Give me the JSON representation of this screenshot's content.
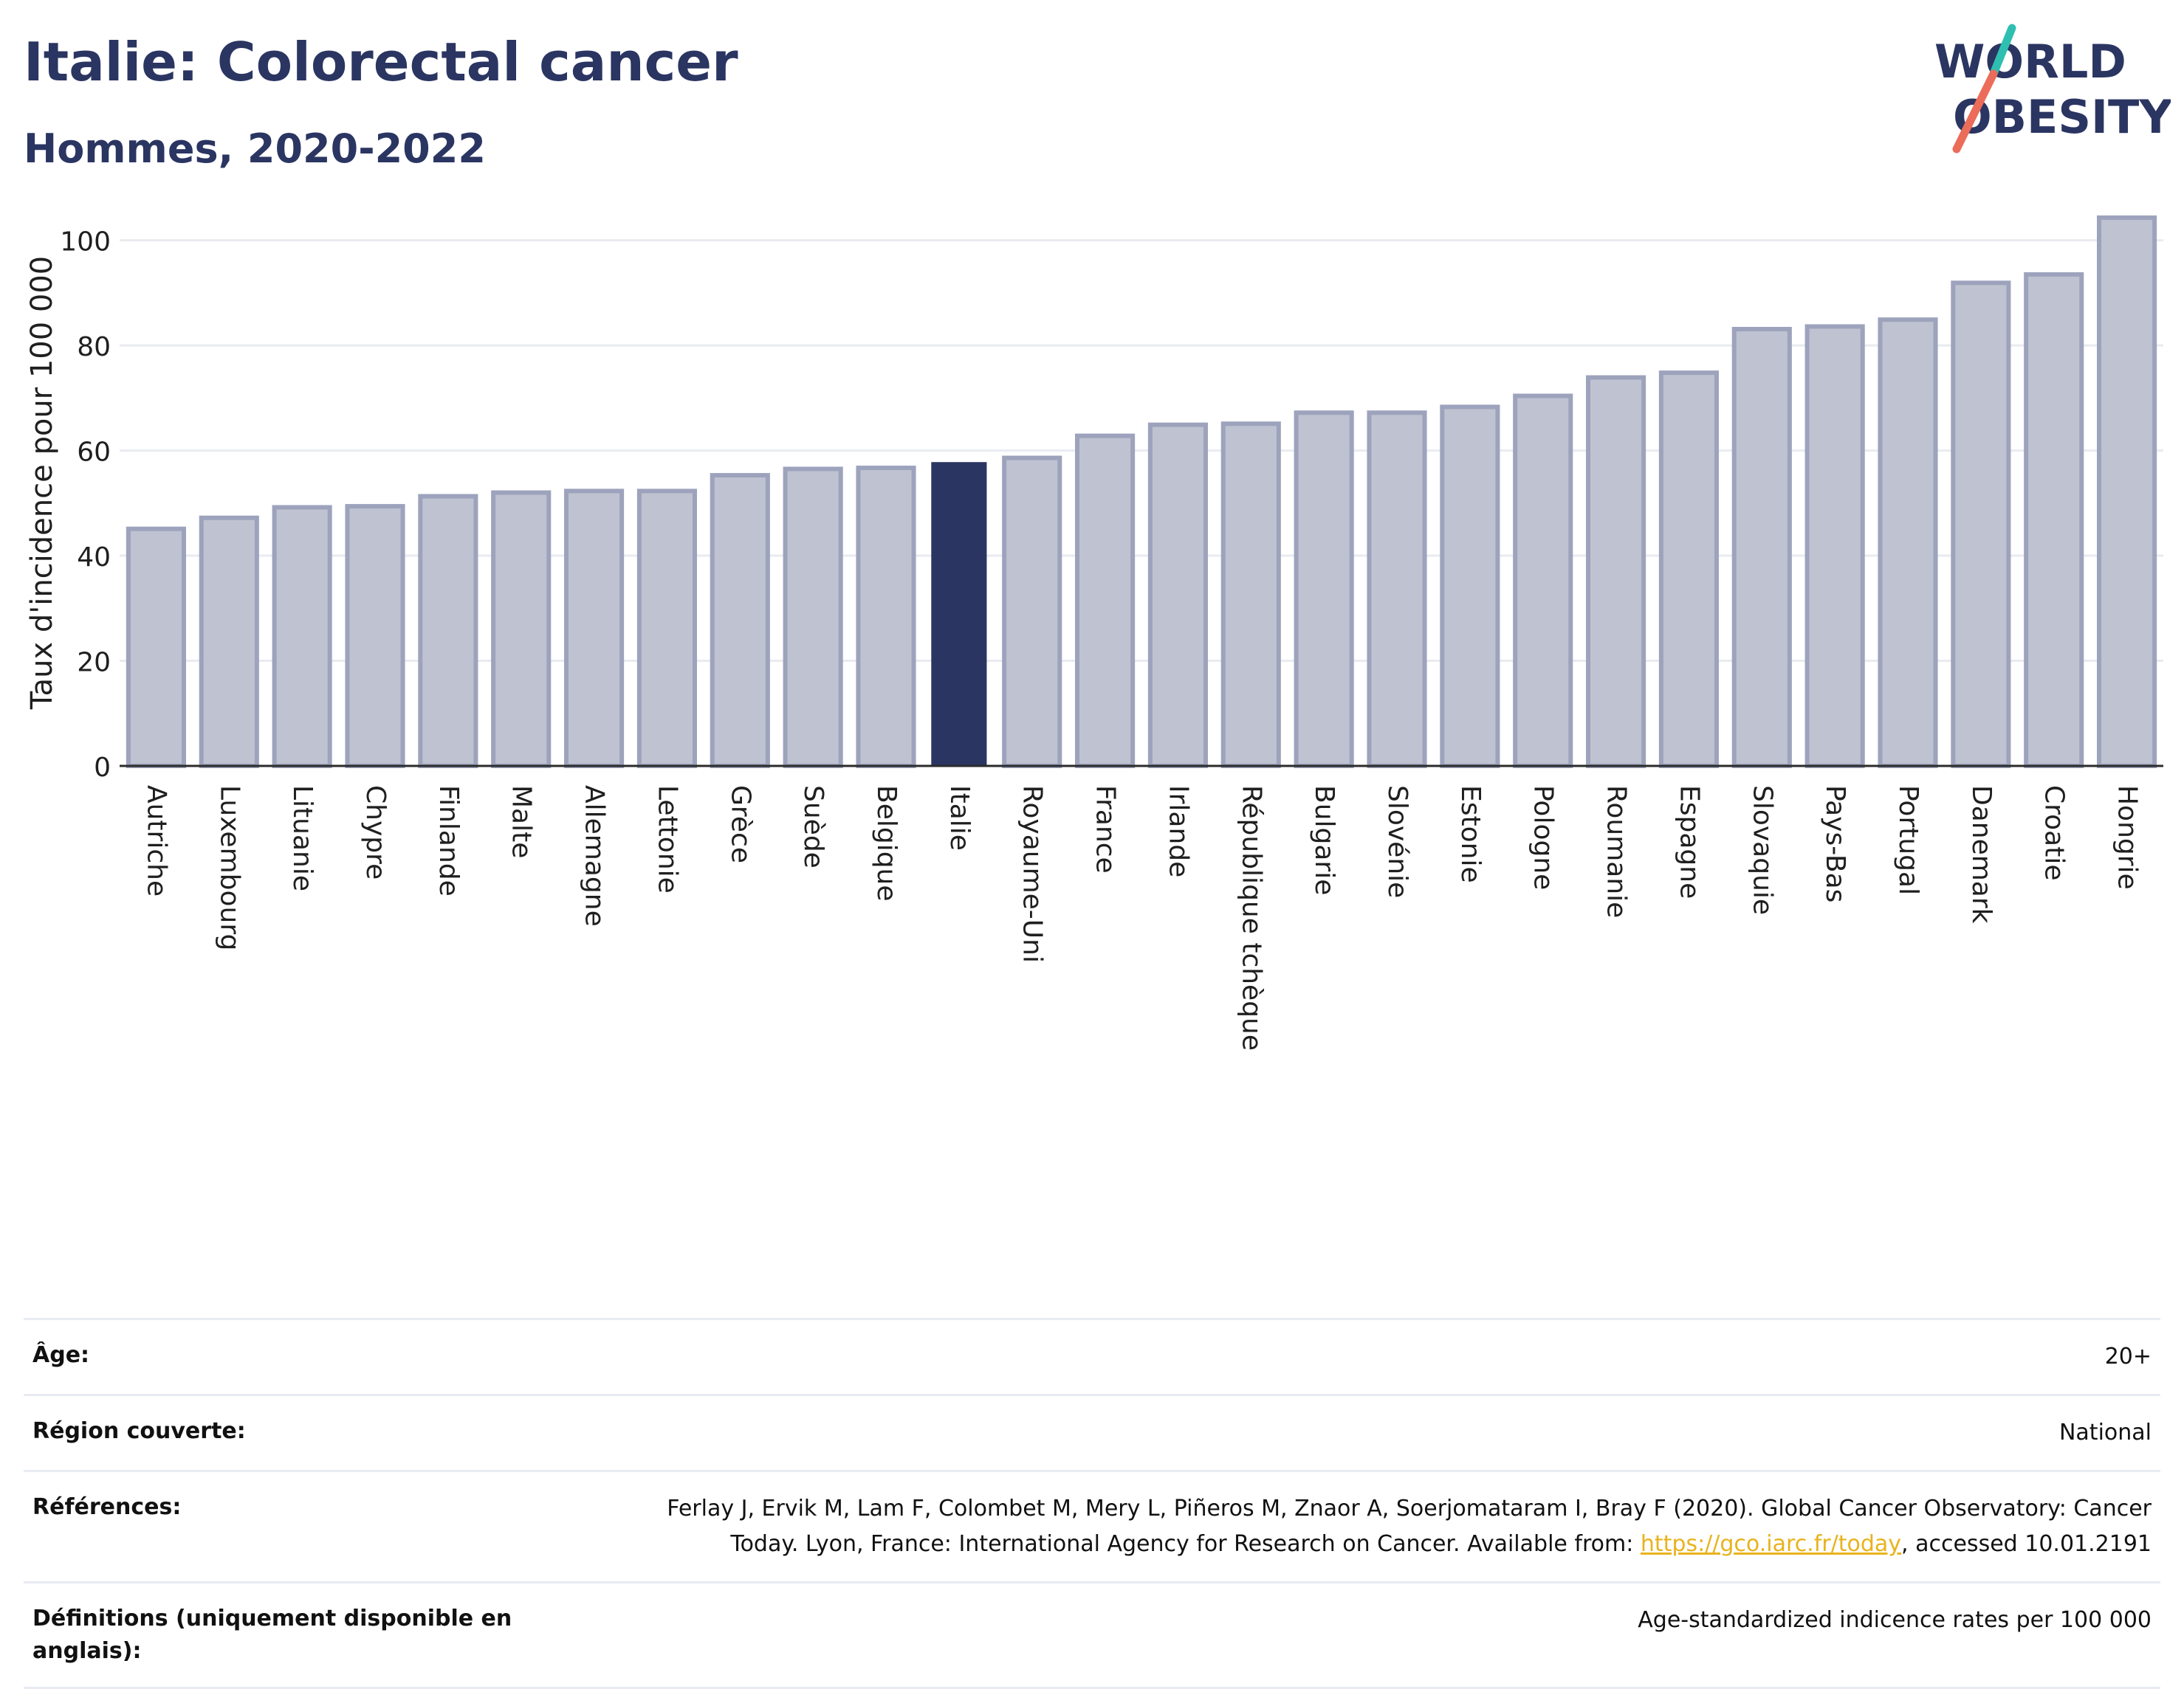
{
  "header": {
    "title": "Italie: Colorectal cancer",
    "subtitle": "Hommes, 2020-2022"
  },
  "logo": {
    "line1": "WORLD",
    "line2": "OBESITY",
    "color_text": "#2b3562",
    "color_slash_top": "#2fbfb1",
    "color_slash_bottom": "#ec6c5a"
  },
  "colors": {
    "bar_fill": "#bfc2d0",
    "bar_stroke": "#9da3bc",
    "highlight": "#2b3562",
    "grid": "#e9ebf1",
    "axis": "#2b2b2b"
  },
  "chart_data": {
    "type": "bar",
    "ylabel": "Taux d'incidence pour 100 000",
    "xlabel": "",
    "ylim": [
      0,
      105
    ],
    "yticks": [
      0,
      20,
      40,
      60,
      80,
      100
    ],
    "grid": true,
    "highlight_category": "Italie",
    "categories": [
      "Autriche",
      "Luxembourg",
      "Lituanie",
      "Chypre",
      "Finlande",
      "Malte",
      "Allemagne",
      "Lettonie",
      "Grèce",
      "Suède",
      "Belgique",
      "Italie",
      "Royaume-Uni",
      "France",
      "Irlande",
      "République tchèque",
      "Bulgarie",
      "Slovénie",
      "Estonie",
      "Pologne",
      "Roumanie",
      "Espagne",
      "Slovaquie",
      "Pays-Bas",
      "Portugal",
      "Danemark",
      "Croatie",
      "Hongrie"
    ],
    "values": [
      45.1,
      47.2,
      49.2,
      49.4,
      51.3,
      52.0,
      52.3,
      52.3,
      55.3,
      56.5,
      56.7,
      57.8,
      58.6,
      62.8,
      64.9,
      65.1,
      67.2,
      67.2,
      68.3,
      70.4,
      73.9,
      74.8,
      83.1,
      83.6,
      84.9,
      91.9,
      93.5,
      104.3
    ]
  },
  "meta": {
    "age_label": "Âge:",
    "age_value": "20+",
    "region_label": "Région couverte:",
    "region_value": "National",
    "refs_label": "Références:",
    "refs_text_1": "Ferlay J, Ervik M, Lam F, Colombet M, Mery L, Piñeros M, Znaor A, Soerjomataram I, Bray F (2020). Global Cancer Observatory: Cancer",
    "refs_text_2": "Today. Lyon, France: International Agency for Research on Cancer. Available from: ",
    "refs_link": "https://gco.iarc.fr/today",
    "refs_text_3": ", accessed 10.01.2191",
    "defs_label": "Définitions (uniquement disponible en anglais):",
    "defs_value": "Age-standardized indicence rates per 100 000"
  }
}
